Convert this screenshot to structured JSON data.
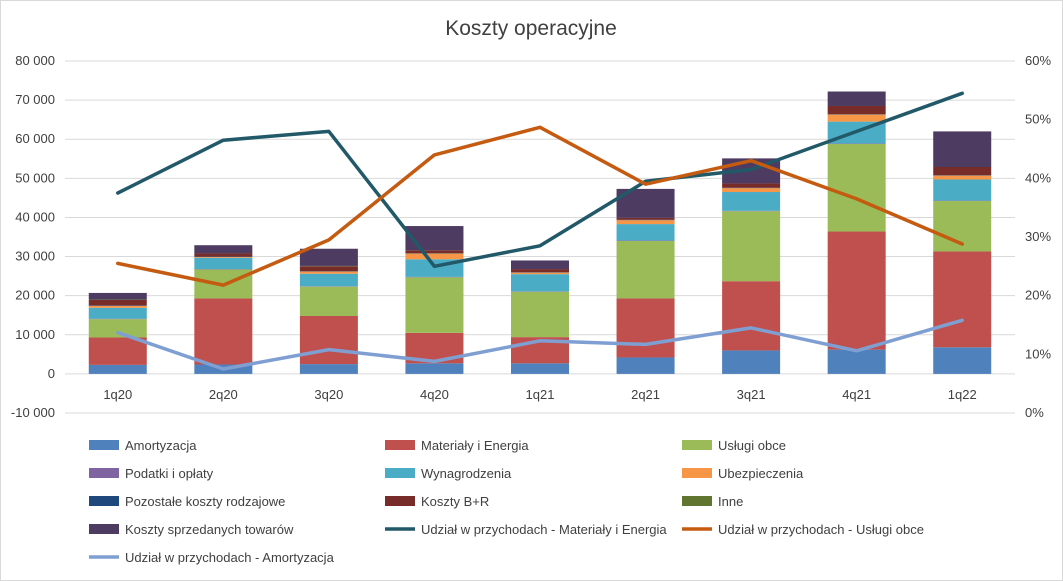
{
  "chart_data": {
    "type": "bar",
    "stacked": true,
    "title": "Koszty operacyjne",
    "categories": [
      "1q20",
      "2q20",
      "3q20",
      "4q20",
      "1q21",
      "2q21",
      "3q21",
      "4q21",
      "1q22"
    ],
    "ylim": [
      -10000,
      80000
    ],
    "yticks": [
      -10000,
      0,
      10000,
      20000,
      30000,
      40000,
      50000,
      60000,
      70000,
      80000
    ],
    "ytick_labels": [
      "-10 000",
      "0",
      "10 000",
      "20 000",
      "30 000",
      "40 000",
      "50 000",
      "60 000",
      "70 000",
      "80 000"
    ],
    "y2lim": [
      0,
      0.6
    ],
    "y2ticks": [
      0,
      0.1,
      0.2,
      0.3,
      0.4,
      0.5,
      0.6
    ],
    "y2tick_labels": [
      "0%",
      "10%",
      "20%",
      "30%",
      "40%",
      "50%",
      "60%"
    ],
    "grid": true,
    "legend_position": "bottom",
    "series": [
      {
        "name": "Amortyzacja",
        "kind": "bar",
        "color": "#4f81bd",
        "values": [
          2300,
          2400,
          2500,
          2700,
          2700,
          4200,
          6000,
          6200,
          6800
        ]
      },
      {
        "name": "Materiały i Energia",
        "kind": "bar",
        "color": "#c0504d",
        "values": [
          7000,
          16900,
          12300,
          7800,
          6700,
          15100,
          17700,
          30200,
          24500
        ]
      },
      {
        "name": "Usługi obce",
        "kind": "bar",
        "color": "#9bbb59",
        "values": [
          4700,
          7400,
          7500,
          14200,
          11600,
          14700,
          17900,
          22400,
          12900
        ]
      },
      {
        "name": "Podatki i opłaty",
        "kind": "bar",
        "color": "#8064a2",
        "values": [
          100,
          100,
          100,
          100,
          100,
          100,
          100,
          100,
          100
        ]
      },
      {
        "name": "Wynagrodzenia",
        "kind": "bar",
        "color": "#4bacc6",
        "values": [
          2800,
          2900,
          3200,
          4500,
          4400,
          4200,
          4800,
          5600,
          5400
        ]
      },
      {
        "name": "Ubezpieczenia",
        "kind": "bar",
        "color": "#f79646",
        "values": [
          500,
          200,
          600,
          1500,
          400,
          1000,
          1000,
          1800,
          1000
        ]
      },
      {
        "name": "Pozostałe koszty rodzajowe",
        "kind": "bar",
        "color": "#1f497d",
        "values": [
          100,
          100,
          100,
          100,
          100,
          100,
          100,
          100,
          100
        ]
      },
      {
        "name": "Koszty B+R",
        "kind": "bar",
        "color": "#772c2a",
        "values": [
          1400,
          800,
          1200,
          700,
          800,
          500,
          1100,
          2100,
          2100
        ]
      },
      {
        "name": "Inne",
        "kind": "bar",
        "color": "#5f7530",
        "values": [
          100,
          0,
          100,
          0,
          0,
          0,
          0,
          0,
          0
        ]
      },
      {
        "name": "Koszty sprzedanych towarów",
        "kind": "bar",
        "color": "#4d3b62",
        "values": [
          1700,
          2100,
          4400,
          6200,
          2200,
          7400,
          6400,
          3700,
          9100
        ]
      },
      {
        "name": "Udział w przychodach - Materiały i Energia",
        "kind": "line",
        "axis": "right",
        "color": "#215968",
        "values": [
          0.375,
          0.465,
          0.48,
          0.25,
          0.285,
          0.395,
          0.415,
          0.48,
          0.545
        ]
      },
      {
        "name": "Udział w przychodach - Usługi obce",
        "kind": "line",
        "axis": "right",
        "color": "#c55a11",
        "values": [
          0.255,
          0.218,
          0.295,
          0.44,
          0.487,
          0.39,
          0.43,
          0.365,
          0.288
        ]
      },
      {
        "name": "Udział w przychodach - Amortyzacja",
        "kind": "line",
        "axis": "right",
        "color": "#7f9fd3",
        "values": [
          0.137,
          0.075,
          0.108,
          0.088,
          0.123,
          0.117,
          0.145,
          0.106,
          0.158
        ]
      }
    ]
  }
}
